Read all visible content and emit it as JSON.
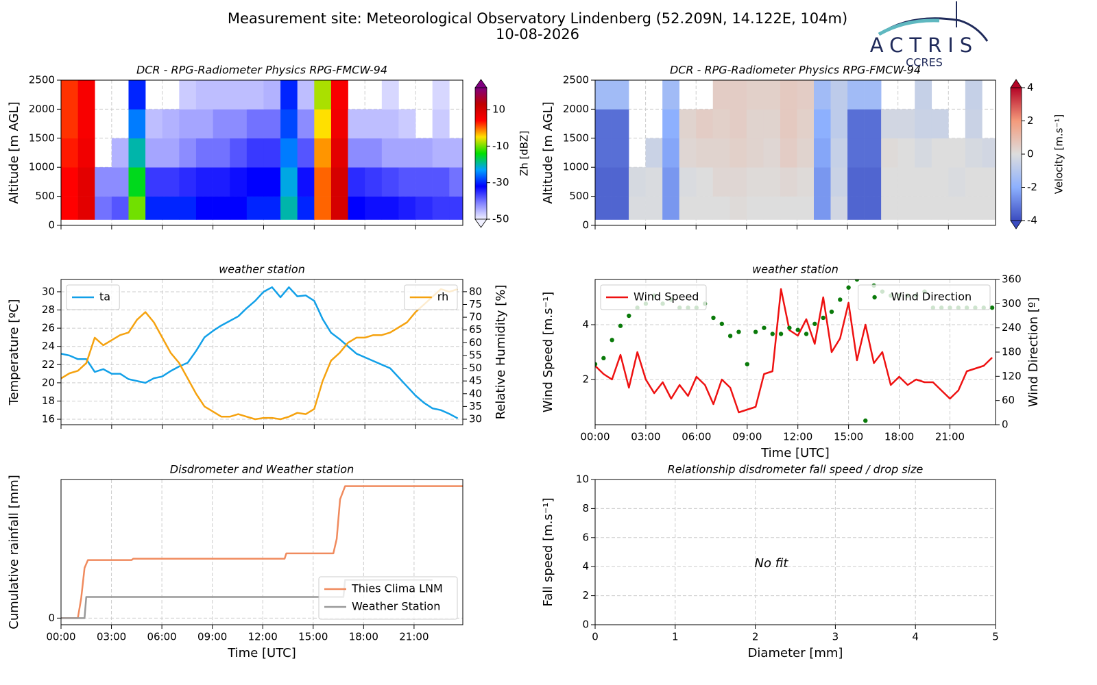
{
  "header": {
    "title": "Measurement site: Meteorological Observatory Lindenberg (52.209N, 14.122E, 104m)",
    "date": "10-08-2026",
    "logo": "ACTRIS",
    "logo_sub": "CCRES"
  },
  "chart_data": [
    {
      "type": "heatmap",
      "title": "DCR - RPG-Radiometer Physics RPG-FMCW-94",
      "ylabel": "Altitude [m AGL]",
      "xlim": [
        0,
        23.8
      ],
      "xticks": [
        0,
        3,
        6,
        9,
        12,
        15,
        18,
        21
      ],
      "show_xticklabels": false,
      "ylim": [
        0,
        2500
      ],
      "yticks": [
        0,
        500,
        1000,
        1500,
        2000,
        2500
      ],
      "grid": true,
      "x_edges": [
        0,
        1,
        2,
        3,
        4,
        5,
        6,
        7,
        8,
        9,
        10,
        11,
        12,
        13,
        14,
        15,
        16,
        17,
        18,
        19,
        20,
        21,
        22,
        23,
        24
      ],
      "y_edges": [
        100,
        500,
        1000,
        1500,
        2000,
        2500
      ],
      "z": [
        [
          4,
          8,
          -40,
          -38,
          -10,
          -30,
          -30,
          -30,
          -32,
          -32,
          -32,
          -30,
          -30,
          -20,
          -30,
          0,
          10,
          -32,
          -33,
          -33,
          -34,
          -35,
          -36,
          -36
        ],
        [
          4,
          8,
          -42,
          -42,
          -15,
          -36,
          -36,
          -35,
          -34,
          -34,
          -33,
          -32,
          -32,
          -22,
          -33,
          0,
          10,
          -35,
          -36,
          -37,
          -38,
          -38,
          -38,
          -40
        ],
        [
          3,
          6,
          null,
          -45,
          -20,
          -44,
          -44,
          -42,
          -40,
          -40,
          -38,
          -36,
          -36,
          -25,
          -38,
          -2,
          8,
          -42,
          -42,
          -44,
          -44,
          -44,
          -45,
          -45
        ],
        [
          2,
          5,
          null,
          null,
          -25,
          -46,
          -45,
          -44,
          -44,
          -42,
          -42,
          -40,
          -40,
          -28,
          -42,
          -5,
          6,
          -46,
          -46,
          -46,
          -47,
          null,
          -47,
          null
        ],
        [
          2,
          5,
          null,
          null,
          -30,
          null,
          null,
          -47,
          -46,
          -46,
          -46,
          -46,
          -45,
          -30,
          -46,
          -8,
          5,
          null,
          null,
          -48,
          null,
          null,
          -48,
          null
        ]
      ],
      "colormap": [
        "#f0f0ff",
        "#8080ff",
        "#0000ff",
        "#00a0ff",
        "#00e000",
        "#ffe000",
        "#ff0000",
        "#c00000",
        "#800080"
      ],
      "clim": [
        -50,
        22
      ],
      "cticks": [
        -50,
        -30,
        -10,
        10
      ],
      "clabel": "Zh [dBZ]"
    },
    {
      "type": "heatmap",
      "title": "DCR - RPG-Radiometer Physics RPG-FMCW-94",
      "ylabel": "Altitude [m AGL]",
      "xlim": [
        0,
        23.8
      ],
      "xticks": [
        0,
        3,
        6,
        9,
        12,
        15,
        18,
        21
      ],
      "show_xticklabels": false,
      "ylim": [
        0,
        2500
      ],
      "yticks": [
        0,
        500,
        1000,
        1500,
        2000,
        2500
      ],
      "grid": true,
      "x_edges": [
        0,
        1,
        2,
        3,
        4,
        5,
        6,
        7,
        8,
        9,
        10,
        11,
        12,
        13,
        14,
        15,
        16,
        17,
        18,
        19,
        20,
        21,
        22,
        23,
        24
      ],
      "y_edges": [
        100,
        500,
        1000,
        1500,
        2000,
        2500
      ],
      "z": [
        [
          -3.5,
          -3.5,
          -0.1,
          -0.1,
          -2.5,
          0,
          0,
          0,
          0.1,
          0,
          0,
          0,
          0,
          -2.5,
          -0.3,
          -3.5,
          -3.5,
          0,
          0,
          0,
          0,
          0,
          0,
          0
        ],
        [
          -3.5,
          -3.5,
          -0.2,
          -0.1,
          -2.5,
          -0.1,
          0,
          0.2,
          0.2,
          0.1,
          0.1,
          0.2,
          0.1,
          -2.5,
          -0.5,
          -3.5,
          -3.5,
          0,
          0,
          0,
          0,
          -0.1,
          0,
          0
        ],
        [
          -3.3,
          -3.3,
          null,
          -0.5,
          -2.2,
          0.2,
          0.3,
          0.3,
          0.4,
          0.3,
          0.2,
          0.5,
          0.3,
          -2.2,
          -0.6,
          -3.3,
          -3.3,
          0.1,
          0,
          -0.2,
          0,
          0,
          -0.2,
          -0.3
        ],
        [
          -3.3,
          -3.3,
          null,
          null,
          -2.0,
          0.3,
          0.5,
          0.4,
          0.5,
          0.3,
          0.3,
          0.6,
          0.4,
          -2.0,
          -0.8,
          -3.3,
          -3.3,
          -0.3,
          -0.3,
          -0.5,
          -0.5,
          null,
          -0.5,
          null
        ],
        [
          -1.5,
          -1.5,
          null,
          null,
          -1.5,
          null,
          null,
          0.5,
          0.5,
          0.4,
          0.4,
          0.6,
          0.5,
          -1.5,
          -0.8,
          -1.5,
          -1.5,
          null,
          null,
          -0.6,
          null,
          null,
          -0.6,
          null
        ]
      ],
      "colormap": [
        "#3b4cc0",
        "#8db0fe",
        "#dddddd",
        "#f49a7b",
        "#b40426"
      ],
      "clim": [
        -4,
        4
      ],
      "cticks": [
        -4,
        -2,
        0,
        2,
        4
      ],
      "clabel": "Velocity [m.s⁻¹]"
    },
    {
      "type": "line",
      "title": "weather station",
      "ylabel": "Temperature [ºC]",
      "y2label": "Relative Humidity [%]",
      "xlim": [
        0,
        23.8
      ],
      "xticks": [
        0,
        3,
        6,
        9,
        12,
        15,
        18,
        21
      ],
      "show_xticklabels": false,
      "ylim": [
        15.4,
        31.35
      ],
      "yticks": [
        16,
        18,
        20,
        22,
        24,
        26,
        28,
        30
      ],
      "y2lim": [
        27.85,
        84.8
      ],
      "y2ticks": [
        30,
        35,
        40,
        45,
        50,
        55,
        60,
        65,
        70,
        75,
        80
      ],
      "grid": true,
      "x": [
        0,
        0.5,
        1,
        1.5,
        2,
        2.5,
        3,
        3.5,
        4,
        4.5,
        5,
        5.5,
        6,
        6.5,
        7,
        7.5,
        8,
        8.5,
        9,
        9.5,
        10,
        10.5,
        11,
        11.5,
        12,
        12.5,
        13,
        13.5,
        14,
        14.5,
        15,
        15.5,
        16,
        16.5,
        17,
        17.5,
        18,
        18.5,
        19,
        19.5,
        20,
        20.5,
        21,
        21.5,
        22,
        22.5,
        23,
        23.5
      ],
      "series": [
        {
          "name": "ta",
          "color": "#12a0e8",
          "legend": "upper left",
          "values": [
            23.2,
            23.0,
            22.6,
            22.6,
            21.2,
            21.5,
            21.0,
            21.0,
            20.4,
            20.2,
            20.0,
            20.5,
            20.7,
            21.3,
            21.8,
            22.2,
            23.5,
            25.0,
            25.7,
            26.3,
            26.8,
            27.3,
            28.2,
            29.0,
            30.0,
            30.5,
            29.4,
            30.5,
            29.5,
            29.6,
            29.0,
            27.0,
            25.5,
            24.8,
            24.0,
            23.2,
            22.8,
            22.4,
            22.0,
            21.6,
            20.6,
            19.6,
            18.6,
            17.8,
            17.2,
            17.0,
            16.6,
            16.1
          ]
        },
        {
          "name": "rh",
          "color": "#f5a20f",
          "legend": "upper right",
          "axis": "y2",
          "values": [
            46,
            48,
            49,
            52,
            62,
            59,
            61,
            63,
            64,
            69,
            72,
            68,
            62,
            56,
            52,
            46,
            40,
            35,
            33,
            31,
            31,
            32,
            31,
            30,
            30.5,
            30.5,
            30,
            31,
            32.5,
            32,
            34,
            45,
            53,
            56,
            60,
            62,
            62,
            63,
            63,
            64,
            66,
            68,
            72,
            75,
            78,
            81,
            80,
            81
          ]
        }
      ]
    },
    {
      "type": "line",
      "title": "weather station",
      "xlabel": "Time [UTC]",
      "ylabel": "Wind Speed [m.s⁻¹]",
      "y2label": "Wind Direction [º]",
      "xlim": [
        0,
        23.7
      ],
      "xticks": [
        {
          "value": 0,
          "label": "00:00"
        },
        {
          "value": 3,
          "label": "03:00"
        },
        {
          "value": 6,
          "label": "06:00"
        },
        {
          "value": 9,
          "label": "09:00"
        },
        {
          "value": 12,
          "label": "12:00"
        },
        {
          "value": 15,
          "label": "15:00"
        },
        {
          "value": 18,
          "label": "18:00"
        },
        {
          "value": 21,
          "label": "21:00"
        }
      ],
      "ylim": [
        0.35,
        5.65
      ],
      "yticks": [
        2,
        4
      ],
      "y2lim": [
        0,
        360
      ],
      "y2ticks": [
        0,
        60,
        120,
        180,
        240,
        300,
        360
      ],
      "grid": true,
      "x": [
        0,
        0.5,
        1,
        1.5,
        2,
        2.5,
        3,
        3.5,
        4,
        4.5,
        5,
        5.5,
        6,
        6.5,
        7,
        7.5,
        8,
        8.5,
        9,
        9.5,
        10,
        10.5,
        11,
        11.5,
        12,
        12.5,
        13,
        13.5,
        14,
        14.5,
        15,
        15.5,
        16,
        16.5,
        17,
        17.5,
        18,
        18.5,
        19,
        19.5,
        20,
        20.5,
        21,
        21.5,
        22,
        22.5,
        23,
        23.5
      ],
      "series": [
        {
          "name": "Wind Speed",
          "color": "#ee1111",
          "legend": "upper left",
          "values": [
            2.5,
            2.2,
            2.0,
            2.9,
            1.7,
            3.0,
            2.0,
            1.5,
            1.9,
            1.3,
            1.8,
            1.4,
            2.1,
            1.8,
            1.1,
            2.0,
            1.7,
            0.8,
            0.9,
            1.0,
            2.2,
            2.3,
            5.3,
            3.8,
            3.6,
            4.2,
            3.3,
            5.0,
            3.0,
            3.5,
            4.8,
            2.7,
            4.0,
            2.6,
            3.0,
            1.8,
            2.1,
            1.8,
            2.0,
            1.9,
            1.9,
            1.6,
            1.3,
            1.6,
            2.3,
            2.4,
            2.5,
            2.8
          ]
        },
        {
          "name": "Wind Direction",
          "color": "#0a7a0a",
          "legend": "upper right",
          "axis": "y2",
          "kind": "scatter",
          "values": [
            150,
            165,
            210,
            245,
            270,
            290,
            300,
            320,
            300,
            310,
            290,
            290,
            290,
            300,
            265,
            250,
            220,
            230,
            150,
            230,
            240,
            225,
            225,
            240,
            235,
            225,
            250,
            265,
            280,
            310,
            340,
            360,
            10,
            345,
            330,
            320,
            320,
            320,
            320,
            330,
            290,
            290,
            290,
            290,
            290,
            290,
            290,
            290
          ]
        }
      ]
    },
    {
      "type": "line",
      "title": "Disdrometer and Weather station",
      "xlabel": "Time [UTC]",
      "ylabel": "Cumulative rainfall [mm]",
      "xlim": [
        0,
        23.9
      ],
      "xticks": [
        {
          "value": 0,
          "label": "00:00"
        },
        {
          "value": 3,
          "label": "03:00"
        },
        {
          "value": 6,
          "label": "06:00"
        },
        {
          "value": 9,
          "label": "09:00"
        },
        {
          "value": 12,
          "label": "12:00"
        },
        {
          "value": 15,
          "label": "15:00"
        },
        {
          "value": 18,
          "label": "18:00"
        },
        {
          "value": 21,
          "label": "21:00"
        }
      ],
      "ylim": [
        -0.5,
        10.5
      ],
      "yticks": [
        0
      ],
      "grid": true,
      "series": [
        {
          "name": "Thies Clima LNM",
          "color": "#f08a5d",
          "legend": "lower right",
          "x": [
            0,
            1.0,
            1.2,
            1.4,
            1.6,
            4.2,
            4.3,
            13.3,
            13.4,
            16.2,
            16.4,
            16.6,
            16.9,
            23.9
          ],
          "values": [
            0,
            0,
            1.5,
            3.8,
            4.4,
            4.4,
            4.5,
            4.5,
            4.9,
            4.9,
            6.0,
            9.0,
            10,
            10
          ]
        },
        {
          "name": "Weather Station",
          "color": "#999999",
          "legend": "lower right",
          "x": [
            0,
            1.4,
            1.5,
            16.8,
            16.9,
            22.1
          ],
          "values": [
            0,
            0,
            1.6,
            1.6,
            2.9,
            2.9
          ]
        }
      ]
    },
    {
      "type": "scatter",
      "title": "Relationship disdrometer fall speed / drop size",
      "xlabel": "Diameter [mm]",
      "ylabel": "Fall speed [m.s⁻¹]",
      "xlim": [
        0,
        5
      ],
      "xticks": [
        0,
        1,
        2,
        3,
        4,
        5
      ],
      "ylim": [
        0,
        10
      ],
      "yticks": [
        0,
        2,
        4,
        6,
        8,
        10
      ],
      "grid": true,
      "annotation": "No fit",
      "series": []
    }
  ]
}
